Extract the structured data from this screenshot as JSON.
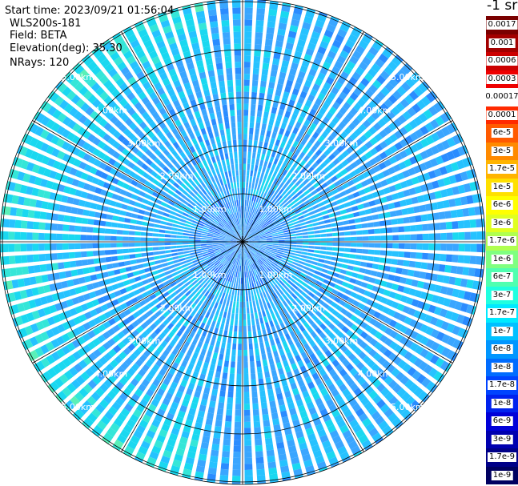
{
  "info": {
    "start_time": "Start time: 2023/09/21 01:56:04",
    "instrument": "WLS200s-181",
    "field": "Field: BETA",
    "elevation": "Elevation(deg): 35.30",
    "nrays": "NRays: 120"
  },
  "chart_data": {
    "type": "heatmap",
    "projection": "polar-ppi",
    "units_label": "-1 sr",
    "range_ring_labels": [
      "1.00km",
      "2.00km",
      "3.00km",
      "4.00km",
      "5.00km"
    ],
    "range_rings_km": [
      1,
      2,
      3,
      4,
      5
    ],
    "max_range_km": 5.05,
    "n_rays": 120,
    "spoke_interval_deg": 30,
    "grid": true,
    "colorbar": {
      "placement": "right",
      "labels": [
        "0.0017",
        "0.001",
        "0.0006",
        "0.0003",
        "0.00017",
        "0.0001",
        "6e-5",
        "3e-5",
        "1.7e-5",
        "1e-5",
        "6e-6",
        "3e-6",
        "1.7e-6",
        "1e-6",
        "6e-7",
        "3e-7",
        "1.7e-7",
        "1e-7",
        "6e-8",
        "3e-8",
        "1.7e-8",
        "1e-8",
        "6e-9",
        "3e-9",
        "1.7e-9",
        "1e-9"
      ],
      "colors": [
        "#7a0000",
        "#a30000",
        "#cc0000",
        "#ee0000",
        "#ffffff",
        "#ff2a00",
        "#ff5a00",
        "#ff8a00",
        "#ffb400",
        "#ffe000",
        "#ffff00",
        "#e0ff20",
        "#b0ff50",
        "#80ff80",
        "#50ffb0",
        "#20ffe0",
        "#00eaff",
        "#00c0ff",
        "#0096ff",
        "#006cff",
        "#0044ff",
        "#0022ee",
        "#0000d8",
        "#0000b0",
        "#000088",
        "#000060"
      ]
    }
  }
}
